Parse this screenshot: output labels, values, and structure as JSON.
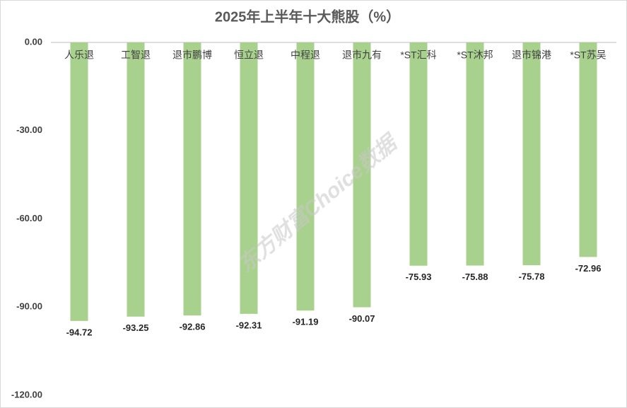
{
  "chart_data": {
    "type": "bar",
    "title": "2025年上半年十大熊股（%）",
    "categories": [
      "人乐退",
      "工智退",
      "退市鹏博",
      "恒立退",
      "中程退",
      "退市九有",
      "*ST汇科",
      "*ST沐邦",
      "退市锦港",
      "*ST苏吴"
    ],
    "values": [
      -94.72,
      -93.25,
      -92.86,
      -92.31,
      -91.19,
      -90.07,
      -75.93,
      -75.88,
      -75.78,
      -72.96
    ],
    "color": "#a9d18e",
    "ylim": [
      -120,
      0
    ],
    "yticks": [
      {
        "value": 0,
        "label": "0.00"
      },
      {
        "value": -30,
        "label": "-30.00"
      },
      {
        "value": -60,
        "label": "-60.00"
      },
      {
        "value": -90,
        "label": "-90.00"
      },
      {
        "value": -120,
        "label": "-120.00"
      }
    ],
    "grid": false,
    "watermark": "东方财富Choice数据"
  }
}
